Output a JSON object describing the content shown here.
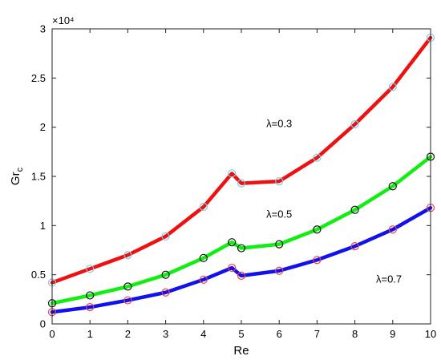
{
  "chart_data": {
    "type": "line",
    "xlabel": "Re",
    "ylabel": "Gr",
    "ylabel_subscript": "c",
    "y_exponent_label": "×10⁴",
    "xlim": [
      0,
      10
    ],
    "ylim": [
      0,
      30000
    ],
    "x_ticks": [
      0,
      1,
      2,
      3,
      4,
      5,
      6,
      7,
      8,
      9,
      10
    ],
    "y_ticks": [
      {
        "value": 0,
        "label": "0"
      },
      {
        "value": 5000,
        "label": "0.5"
      },
      {
        "value": 10000,
        "label": "1"
      },
      {
        "value": 15000,
        "label": "1.5"
      },
      {
        "value": 20000,
        "label": "2"
      },
      {
        "value": 25000,
        "label": "2.5"
      },
      {
        "value": 30000,
        "label": "3"
      }
    ],
    "grid": false,
    "series": [
      {
        "color": "#ee1111",
        "marker_color": "#7ec8e3",
        "points": [
          [
            0,
            4200
          ],
          [
            1,
            5600
          ],
          [
            2,
            7000
          ],
          [
            3,
            8900
          ],
          [
            4,
            11900
          ],
          [
            4.75,
            15300
          ],
          [
            5,
            14300
          ],
          [
            6,
            14500
          ],
          [
            7,
            16900
          ],
          [
            8,
            20300
          ],
          [
            9,
            24100
          ],
          [
            10,
            29100
          ]
        ]
      },
      {
        "color": "#11ee11",
        "marker_color": "#111111",
        "points": [
          [
            0,
            2100
          ],
          [
            1,
            2900
          ],
          [
            2,
            3800
          ],
          [
            3,
            5000
          ],
          [
            4,
            6700
          ],
          [
            4.75,
            8300
          ],
          [
            5,
            7700
          ],
          [
            6,
            8100
          ],
          [
            7,
            9600
          ],
          [
            8,
            11600
          ],
          [
            9,
            14000
          ],
          [
            10,
            17000
          ]
        ]
      },
      {
        "color": "#1111ee",
        "marker_color": "#ee4444",
        "points": [
          [
            0,
            1200
          ],
          [
            1,
            1700
          ],
          [
            2,
            2400
          ],
          [
            3,
            3200
          ],
          [
            4,
            4500
          ],
          [
            4.75,
            5700
          ],
          [
            5,
            4900
          ],
          [
            6,
            5400
          ],
          [
            7,
            6500
          ],
          [
            8,
            7900
          ],
          [
            9,
            9600
          ],
          [
            10,
            11800
          ]
        ]
      }
    ],
    "annotations": [
      {
        "text": "λ=0.3",
        "x": 6,
        "y": 20000
      },
      {
        "text": "λ=0.5",
        "x": 6,
        "y": 10800
      },
      {
        "text": "λ=0.7",
        "x": 8.9,
        "y": 4200
      }
    ]
  }
}
